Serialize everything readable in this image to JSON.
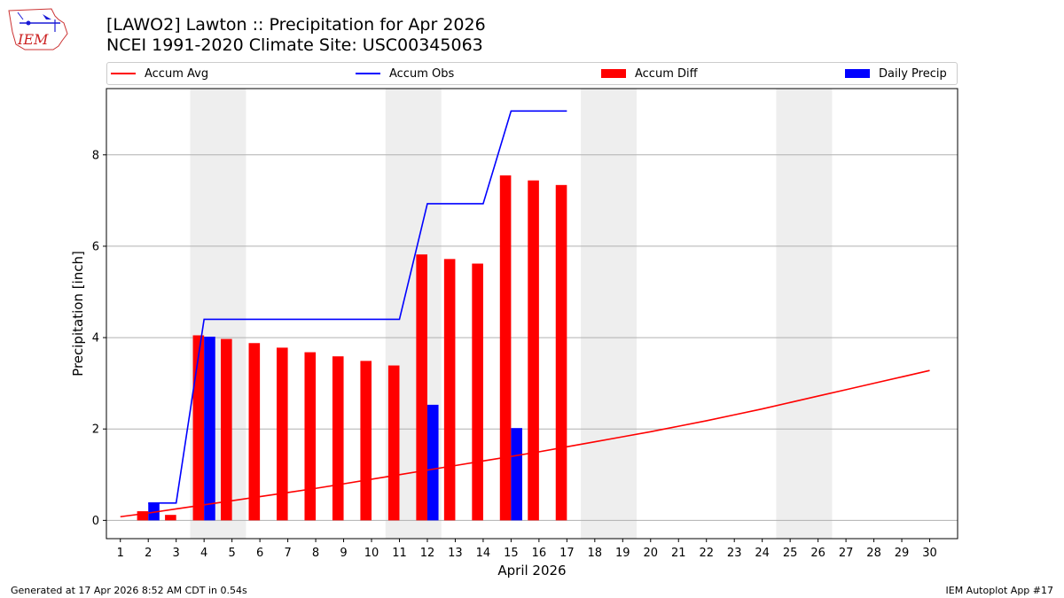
{
  "header": {
    "title_line1": "[LAWO2] Lawton :: Precipitation for Apr 2026",
    "title_line2": "NCEI 1991-2020 Climate Site: USC00345063",
    "logo_text": "IEM"
  },
  "footer": {
    "generated": "Generated at 17 Apr 2026 8:52 AM CDT in 0.54s",
    "app": "IEM Autoplot App #17"
  },
  "colors": {
    "avg": "#ff0000",
    "obs": "#0000ff",
    "diff": "#ff0000",
    "daily": "#0000ff",
    "weekend": "#eeeeee",
    "grid": "#b0b0b0"
  },
  "chart_data": {
    "type": "bar+line",
    "title": "[LAWO2] Lawton :: Precipitation for Apr 2026",
    "xlabel": "April 2026",
    "ylabel": "Precipitation [inch]",
    "xlim": [
      0.5,
      31.0
    ],
    "ylim": [
      -0.4,
      9.45
    ],
    "yticks": [
      0,
      2,
      4,
      6,
      8
    ],
    "xticks": [
      1,
      2,
      3,
      4,
      5,
      6,
      7,
      8,
      9,
      10,
      11,
      12,
      13,
      14,
      15,
      16,
      17,
      18,
      19,
      20,
      21,
      22,
      23,
      24,
      25,
      26,
      27,
      28,
      29,
      30
    ],
    "grid": "y",
    "legend": [
      "Accum Avg",
      "Accum Obs",
      "Accum Diff",
      "Daily Precip"
    ],
    "legend_position": "top",
    "weekend_spans": [
      [
        3.5,
        5.5
      ],
      [
        10.5,
        12.5
      ],
      [
        17.5,
        19.5
      ],
      [
        24.5,
        26.5
      ]
    ],
    "days": [
      1,
      2,
      3,
      4,
      5,
      6,
      7,
      8,
      9,
      10,
      11,
      12,
      13,
      14,
      15,
      16,
      17,
      18,
      19,
      20,
      21,
      22,
      23,
      24,
      25,
      26,
      27,
      28,
      29,
      30
    ],
    "accum_avg": [
      0.08,
      0.16,
      0.25,
      0.34,
      0.43,
      0.52,
      0.61,
      0.7,
      0.8,
      0.9,
      1.0,
      1.1,
      1.2,
      1.3,
      1.4,
      1.5,
      1.61,
      1.72,
      1.83,
      1.94,
      2.06,
      2.18,
      2.31,
      2.44,
      2.58,
      2.72,
      2.86,
      3.0,
      3.14,
      3.28
    ],
    "obs_days": [
      2,
      3,
      4,
      5,
      6,
      7,
      8,
      9,
      10,
      11,
      12,
      13,
      14,
      15,
      16,
      17
    ],
    "accum_obs": [
      0.38,
      0.38,
      4.4,
      4.4,
      4.4,
      4.4,
      4.4,
      4.4,
      4.4,
      4.4,
      6.93,
      6.93,
      6.93,
      8.96,
      8.96,
      8.96
    ],
    "diff_days": [
      2,
      3,
      4,
      5,
      6,
      7,
      8,
      9,
      10,
      11,
      12,
      13,
      14,
      15,
      16,
      17
    ],
    "accum_diff": [
      0.2,
      0.12,
      4.05,
      3.97,
      3.88,
      3.78,
      3.68,
      3.59,
      3.49,
      3.39,
      5.82,
      5.72,
      5.62,
      7.55,
      7.44,
      7.34
    ],
    "daily_days": [
      2,
      4,
      12,
      15
    ],
    "daily_precip": [
      0.38,
      4.02,
      2.53,
      2.02
    ]
  }
}
